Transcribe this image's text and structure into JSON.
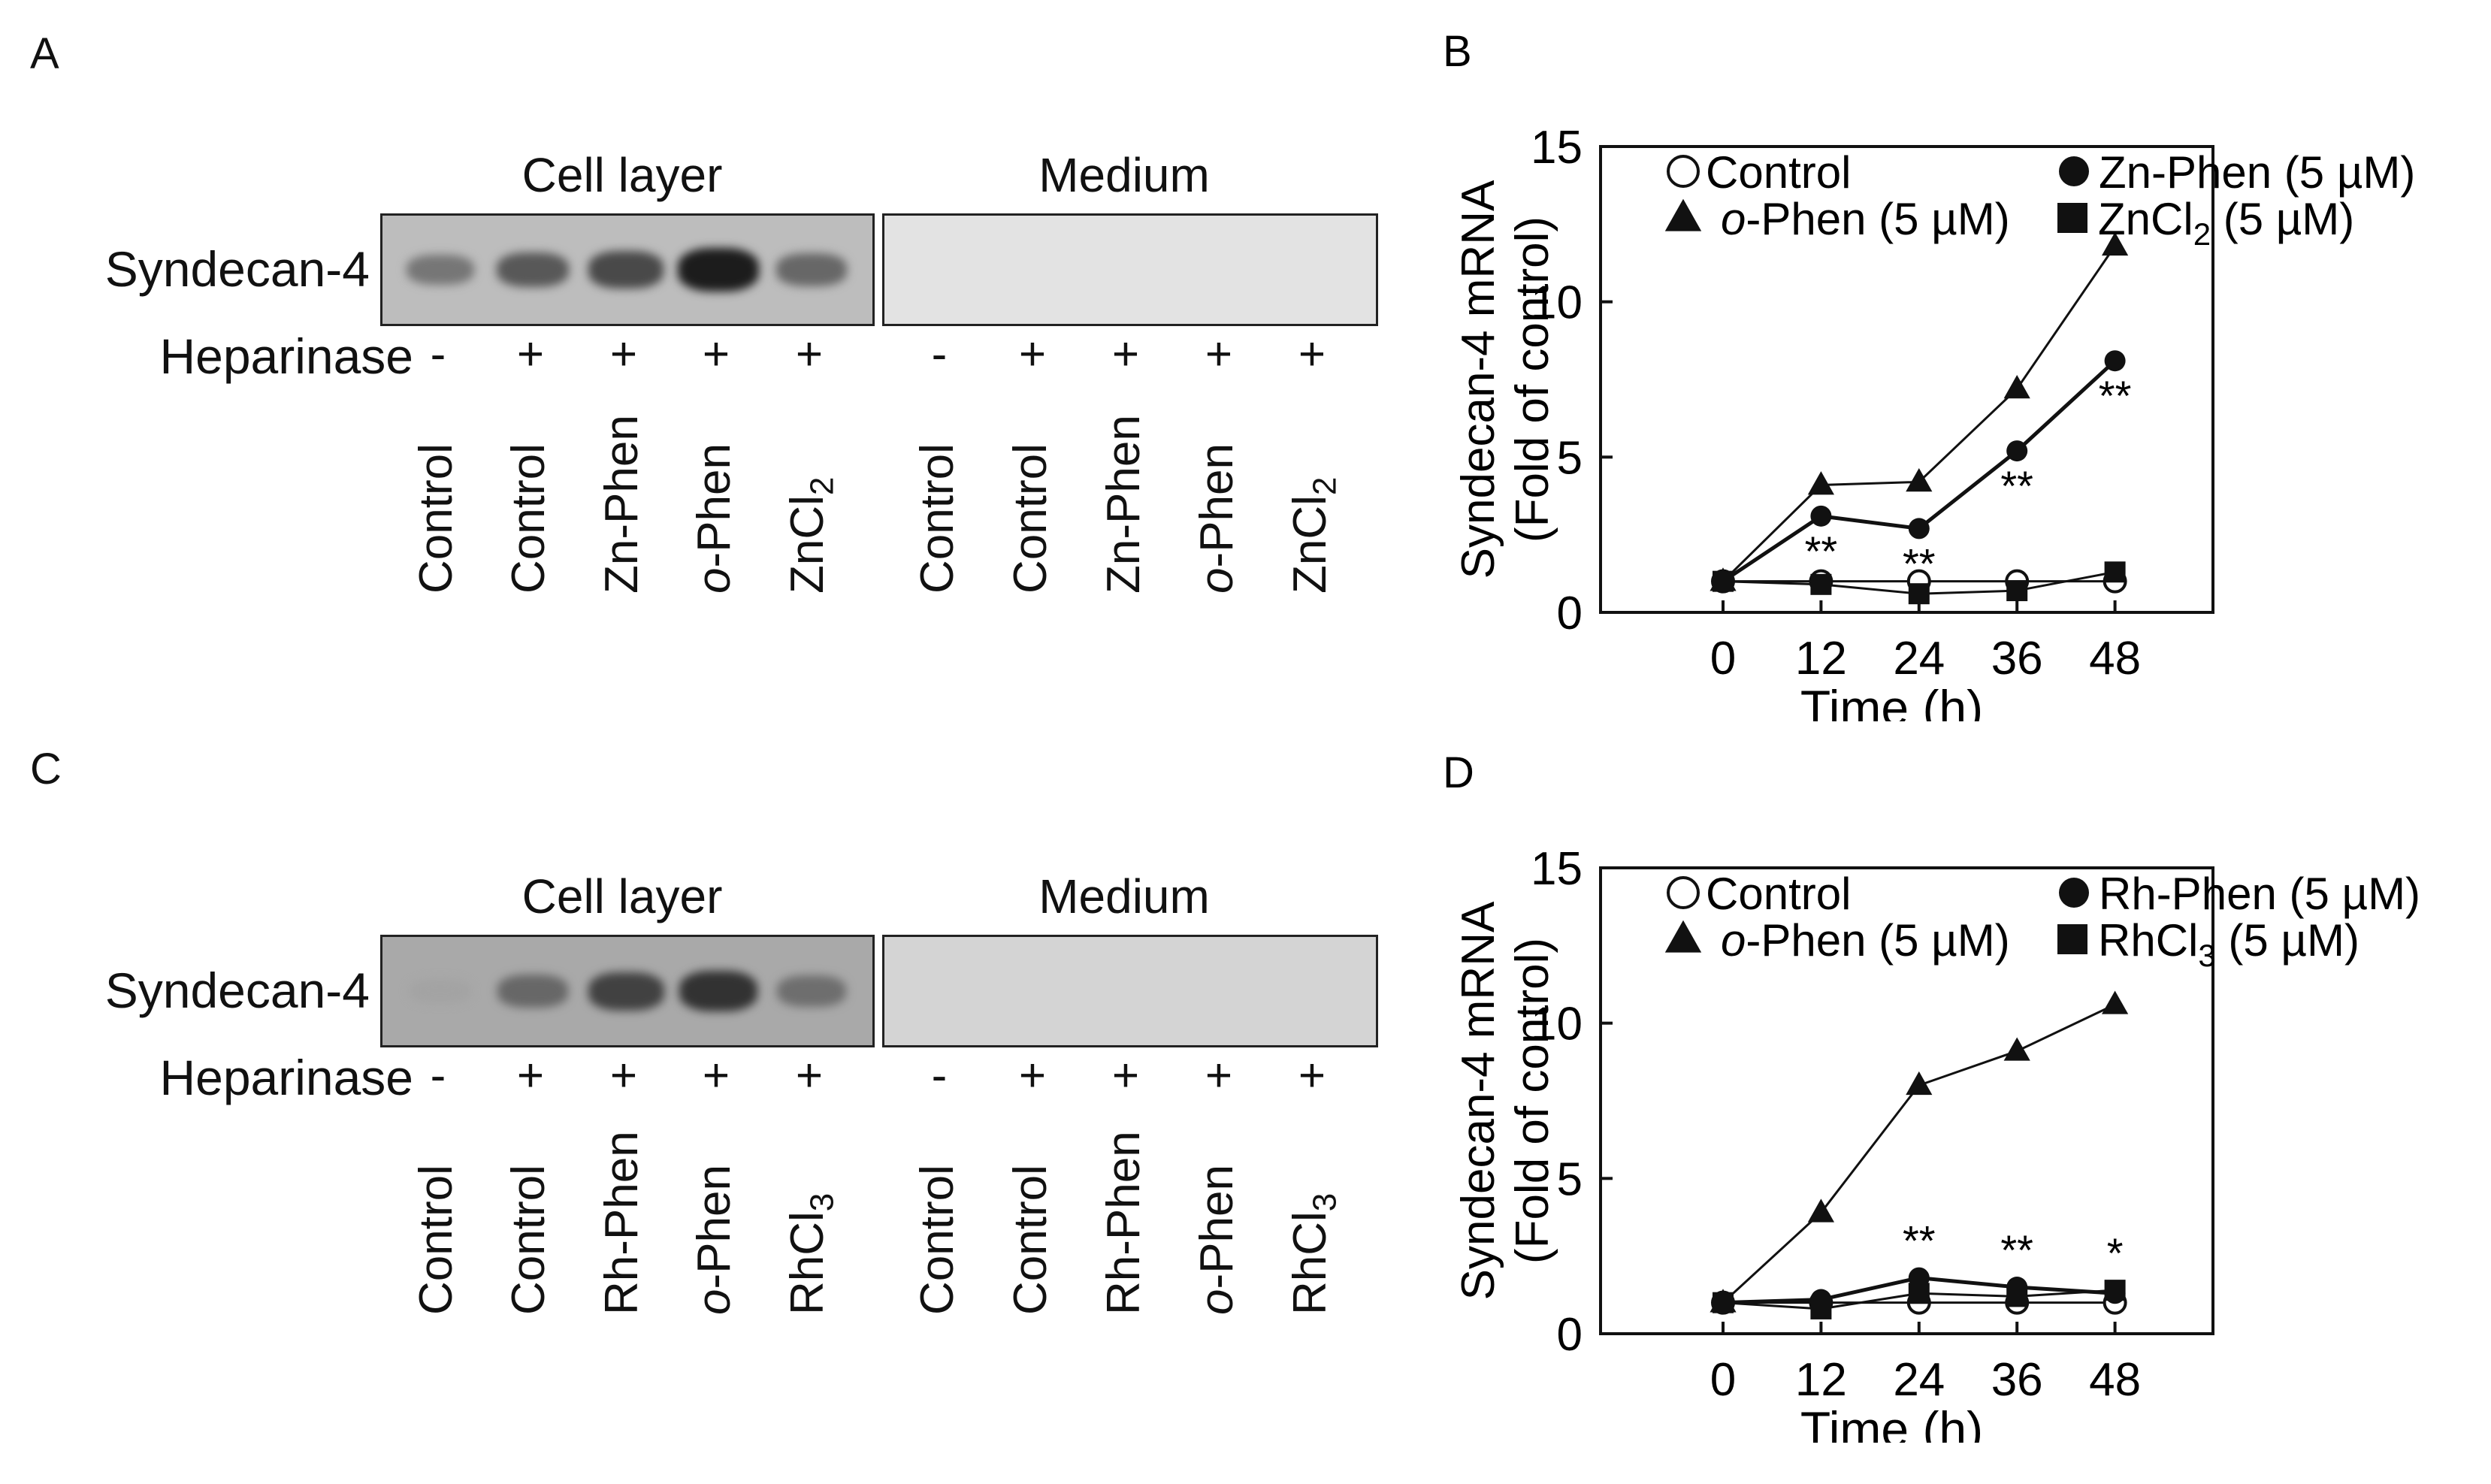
{
  "panels": {
    "A": {
      "letter": "A",
      "cell_title": "Cell layer",
      "medium_title": "Medium",
      "row_label": "Syndecan-4",
      "heparinase_label": "Heparinase",
      "signs": [
        "-",
        "+",
        "+",
        "+",
        "+",
        "-",
        "+",
        "+",
        "+",
        "+"
      ],
      "lanes_cell": [
        {
          "text": "Control"
        },
        {
          "text": "Control"
        },
        {
          "text": "Zn-Phen"
        },
        {
          "text": "o",
          "rest": "-Phen",
          "italic_prefix": true
        },
        {
          "text": "ZnCl",
          "sub": "2"
        }
      ],
      "lanes_medium": [
        {
          "text": "Control"
        },
        {
          "text": "Control"
        },
        {
          "text": "Zn-Phen"
        },
        {
          "text": "o",
          "rest": "-Phen",
          "italic_prefix": true
        },
        {
          "text": "ZnCl",
          "sub": "2"
        }
      ],
      "band_intensity_cell": [
        0.35,
        0.55,
        0.65,
        0.95,
        0.45
      ],
      "band_intensity_medium": [
        0,
        0,
        0,
        0,
        0
      ]
    },
    "C": {
      "letter": "C",
      "cell_title": "Cell layer",
      "medium_title": "Medium",
      "row_label": "Syndecan-4",
      "heparinase_label": "Heparinase",
      "signs": [
        "-",
        "+",
        "+",
        "+",
        "+",
        "-",
        "+",
        "+",
        "+",
        "+"
      ],
      "lanes_cell": [
        {
          "text": "Control"
        },
        {
          "text": "Control"
        },
        {
          "text": "Rh-Phen"
        },
        {
          "text": "o",
          "rest": "-Phen",
          "italic_prefix": true
        },
        {
          "text": "RhCl",
          "sub": "3"
        }
      ],
      "lanes_medium": [
        {
          "text": "Control"
        },
        {
          "text": "Control"
        },
        {
          "text": "Rh-Phen"
        },
        {
          "text": "o",
          "rest": "-Phen",
          "italic_prefix": true
        },
        {
          "text": "RhCl",
          "sub": "3"
        }
      ],
      "band_intensity_cell": [
        0.05,
        0.45,
        0.7,
        0.8,
        0.4
      ],
      "band_intensity_medium": [
        0,
        0,
        0,
        0,
        0
      ]
    }
  },
  "chart_data": [
    {
      "panel_letter": "B",
      "type": "line",
      "xlabel": "Time (h)",
      "ylabel_line1": "Syndecan-4 mRNA",
      "ylabel_line2": "(Fold of control)",
      "x": [
        0,
        12,
        24,
        36,
        48
      ],
      "xlim": [
        -15,
        60
      ],
      "ylim": [
        0,
        15
      ],
      "yticks": [
        0,
        5,
        10,
        15
      ],
      "xticks": [
        0,
        12,
        24,
        36,
        48
      ],
      "series": [
        {
          "name": "Control",
          "marker": "open-circle",
          "values": [
            1.0,
            1.0,
            1.0,
            1.0,
            1.0
          ]
        },
        {
          "name": "Zn-Phen (5 µM)",
          "marker": "filled-circle",
          "values": [
            1.0,
            3.1,
            2.7,
            5.2,
            8.1
          ]
        },
        {
          "name_italic": "o",
          "name_rest": "-Phen (5 µM)",
          "marker": "filled-triangle",
          "values": [
            1.0,
            4.1,
            4.2,
            7.2,
            11.8
          ]
        },
        {
          "name": "ZnCl",
          "name_sub": "2",
          "name_rest": " (5 µM)",
          "marker": "filled-square",
          "values": [
            1.0,
            0.9,
            0.6,
            0.7,
            1.3
          ]
        }
      ],
      "annotations": [
        {
          "x": 12,
          "text": "**",
          "y_at": 3.1,
          "position": "below"
        },
        {
          "x": 24,
          "text": "**",
          "y_at": 2.7,
          "position": "below"
        },
        {
          "x": 36,
          "text": "**",
          "y_at": 5.2,
          "position": "below"
        },
        {
          "x": 48,
          "text": "**",
          "y_at": 8.1,
          "position": "below"
        }
      ]
    },
    {
      "panel_letter": "D",
      "type": "line",
      "xlabel": "Time (h)",
      "ylabel_line1": "Syndecan-4 mRNA",
      "ylabel_line2": "(Fold of control)",
      "x": [
        0,
        12,
        24,
        36,
        48
      ],
      "xlim": [
        -15,
        60
      ],
      "ylim": [
        0,
        15
      ],
      "yticks": [
        0,
        5,
        10,
        15
      ],
      "xticks": [
        0,
        12,
        24,
        36,
        48
      ],
      "series": [
        {
          "name": "Control",
          "marker": "open-circle",
          "values": [
            1.0,
            1.0,
            1.0,
            1.0,
            1.0
          ]
        },
        {
          "name": "Rh-Phen (5 µM)",
          "marker": "filled-circle",
          "values": [
            1.0,
            1.1,
            1.8,
            1.5,
            1.3
          ]
        },
        {
          "name_italic": "o",
          "name_rest": "-Phen (5 µM)",
          "marker": "filled-triangle",
          "values": [
            1.0,
            3.9,
            8.0,
            9.1,
            10.6
          ]
        },
        {
          "name": "RhCl",
          "name_sub": "3",
          "name_rest": " (5 µM)",
          "marker": "filled-square",
          "values": [
            1.0,
            0.8,
            1.3,
            1.2,
            1.4
          ]
        }
      ],
      "annotations": [
        {
          "x": 24,
          "text": "**",
          "y_at": 1.8,
          "position": "above"
        },
        {
          "x": 36,
          "text": "**",
          "y_at": 1.5,
          "position": "above"
        },
        {
          "x": 48,
          "text": "*",
          "y_at": 1.4,
          "position": "above"
        }
      ]
    }
  ]
}
